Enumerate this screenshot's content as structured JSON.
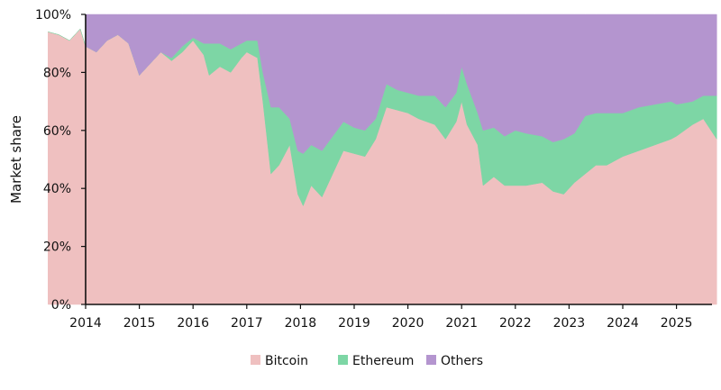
{
  "chart_data": {
    "type": "area",
    "stacked": true,
    "ylabel": "Market share",
    "xlabel": "",
    "ylim": [
      0,
      100
    ],
    "xlim": [
      2013.3,
      2025.75
    ],
    "y_ticks": [
      "0%",
      "20%",
      "40%",
      "60%",
      "80%",
      "100%"
    ],
    "y_tick_values": [
      0,
      20,
      40,
      60,
      80,
      100
    ],
    "x_ticks": [
      "2014",
      "2015",
      "2016",
      "2017",
      "2018",
      "2019",
      "2020",
      "2021",
      "2022",
      "2023",
      "2024",
      "2025"
    ],
    "x_tick_values": [
      2014,
      2015,
      2016,
      2017,
      2018,
      2019,
      2020,
      2021,
      2022,
      2023,
      2024,
      2025
    ],
    "grid": false,
    "legend_placement": "bottom",
    "x": [
      2013.3,
      2013.5,
      2013.7,
      2013.9,
      2014.0,
      2014.2,
      2014.4,
      2014.6,
      2014.8,
      2015.0,
      2015.2,
      2015.4,
      2015.6,
      2015.8,
      2016.0,
      2016.2,
      2016.3,
      2016.5,
      2016.7,
      2016.9,
      2017.0,
      2017.2,
      2017.3,
      2017.45,
      2017.6,
      2017.8,
      2017.95,
      2018.05,
      2018.2,
      2018.4,
      2018.6,
      2018.8,
      2019.0,
      2019.2,
      2019.4,
      2019.6,
      2019.8,
      2020.0,
      2020.2,
      2020.5,
      2020.7,
      2020.9,
      2021.0,
      2021.1,
      2021.3,
      2021.4,
      2021.6,
      2021.8,
      2022.0,
      2022.2,
      2022.5,
      2022.7,
      2022.9,
      2023.1,
      2023.3,
      2023.5,
      2023.7,
      2024.0,
      2024.3,
      2024.6,
      2024.9,
      2025.0,
      2025.3,
      2025.5,
      2025.75
    ],
    "series": [
      {
        "name": "Bitcoin",
        "color": "#efc0c0",
        "values": [
          94,
          93,
          91,
          95,
          89,
          87,
          91,
          93,
          90,
          79,
          83,
          87,
          84,
          87,
          91,
          86,
          79,
          82,
          80,
          85,
          87,
          85,
          70,
          45,
          48,
          55,
          38,
          34,
          41,
          37,
          45,
          53,
          52,
          51,
          57,
          68,
          67,
          66,
          64,
          62,
          57,
          63,
          70,
          62,
          55,
          41,
          44,
          41,
          41,
          41,
          42,
          39,
          38,
          42,
          45,
          48,
          48,
          51,
          53,
          55,
          57,
          58,
          62,
          64,
          57
        ]
      },
      {
        "name": "Ethereum",
        "color": "#7dd6a5",
        "values": [
          0,
          0,
          0,
          0,
          0,
          0,
          0,
          0,
          0,
          0,
          0,
          0,
          1,
          2,
          1,
          4,
          11,
          8,
          8,
          5,
          4,
          6,
          10,
          23,
          20,
          9,
          15,
          18,
          14,
          16,
          13,
          10,
          9,
          9,
          7,
          8,
          7,
          7,
          8,
          10,
          11,
          10,
          12,
          14,
          11,
          19,
          17,
          17,
          19,
          18,
          16,
          17,
          19,
          17,
          20,
          18,
          18,
          15,
          15,
          14,
          13,
          11,
          8,
          8,
          15
        ]
      },
      {
        "name": "Others",
        "color": "#b495cf",
        "values": [
          null,
          null,
          null,
          null,
          11,
          13,
          9,
          7,
          10,
          21,
          17,
          13,
          15,
          11,
          8,
          10,
          10,
          10,
          12,
          10,
          9,
          9,
          20,
          32,
          32,
          36,
          47,
          48,
          45,
          47,
          42,
          37,
          39,
          40,
          36,
          24,
          26,
          27,
          28,
          28,
          32,
          27,
          18,
          24,
          34,
          40,
          39,
          42,
          40,
          41,
          42,
          44,
          43,
          41,
          35,
          34,
          34,
          34,
          32,
          31,
          30,
          31,
          30,
          28,
          28
        ]
      }
    ]
  }
}
